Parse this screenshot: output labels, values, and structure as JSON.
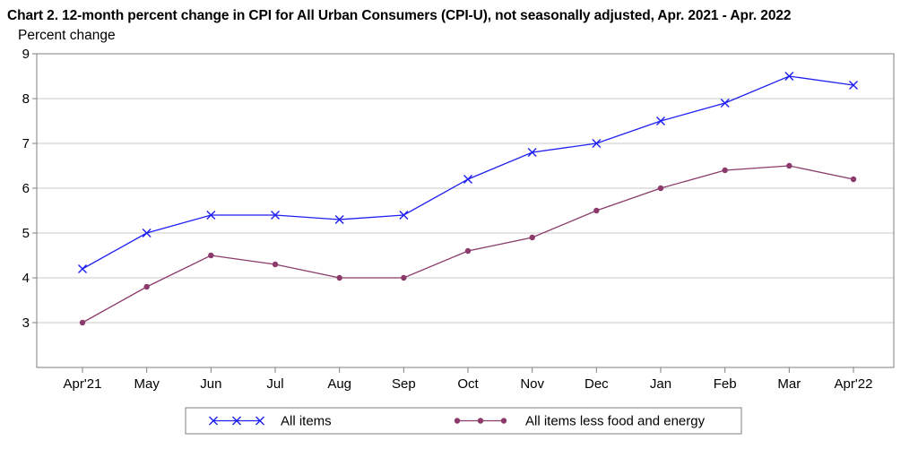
{
  "chart_data": {
    "type": "line",
    "title": "Chart 2. 12-month percent change in CPI for All Urban Consumers (CPI-U), not seasonally adjusted, Apr. 2021 - Apr. 2022",
    "ylabel": "Percent change",
    "xlabel": "",
    "ylim": [
      2,
      9
    ],
    "yticks": [
      3,
      4,
      5,
      6,
      7,
      8,
      9
    ],
    "categories": [
      "Apr'21",
      "May",
      "Jun",
      "Jul",
      "Aug",
      "Sep",
      "Oct",
      "Nov",
      "Dec",
      "Jan",
      "Feb",
      "Mar",
      "Apr'22"
    ],
    "grid": true,
    "legend_position": "bottom",
    "series": [
      {
        "name": "All items",
        "color": "#1f1ff2",
        "marker": "x",
        "values": [
          4.2,
          5.0,
          5.4,
          5.4,
          5.3,
          5.4,
          6.2,
          6.8,
          7.0,
          7.5,
          7.9,
          8.5,
          8.3
        ]
      },
      {
        "name": "All items less food and energy",
        "color": "#8b3a6b",
        "marker": "circle",
        "values": [
          3.0,
          3.8,
          4.5,
          4.3,
          4.0,
          4.0,
          4.6,
          4.9,
          5.5,
          6.0,
          6.4,
          6.5,
          6.2
        ]
      }
    ]
  }
}
